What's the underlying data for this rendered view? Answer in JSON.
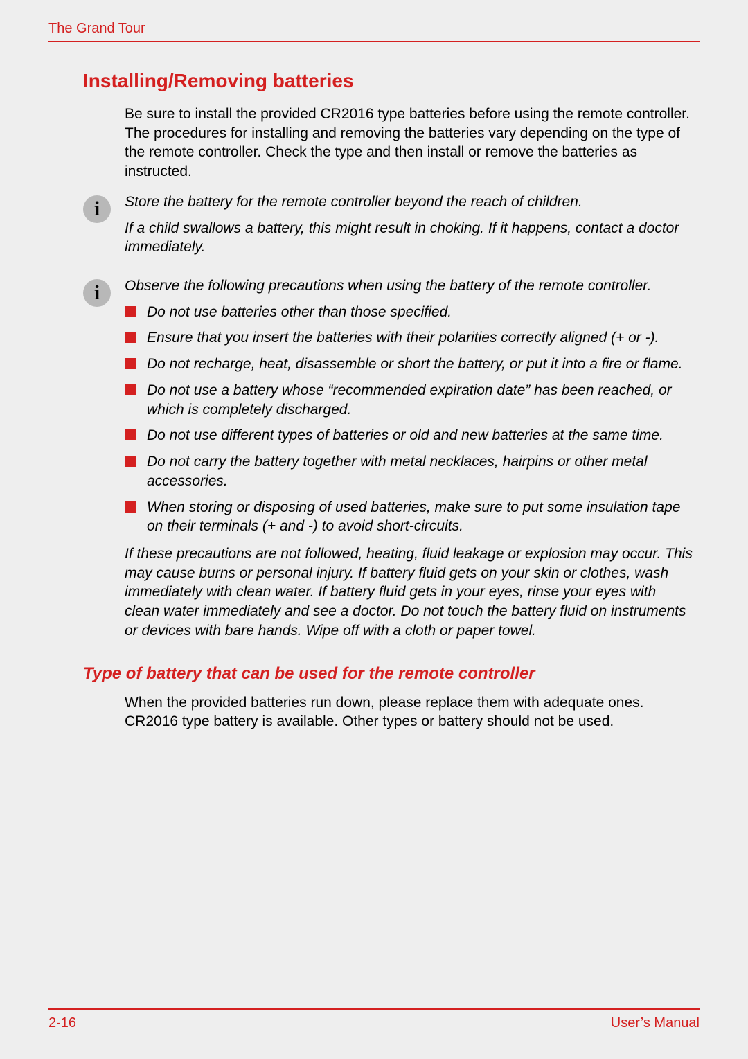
{
  "header": {
    "left": "The Grand Tour"
  },
  "section": {
    "heading": "Installing/Removing batteries",
    "intro": "Be sure to install the provided CR2016 type batteries before using the remote controller. The procedures for installing and removing the batteries vary depending on the type of the remote controller. Check the type and then install or remove the batteries as instructed."
  },
  "note1": {
    "line1": "Store the battery for the remote controller beyond the reach of children.",
    "line2": "If a child swallows a battery, this might result in choking. If it happens, contact a doctor immediately."
  },
  "note2": {
    "intro": "Observe the following precautions when using the battery of the remote controller.",
    "bullets": [
      "Do not use batteries other than those specified.",
      "Ensure that you insert the batteries with their polarities correctly aligned (+ or -).",
      "Do not recharge, heat, disassemble or short the battery, or put it into a fire or flame.",
      "Do not use a battery whose “recommended expiration date” has been reached, or which is completely discharged.",
      "Do not use different types of batteries or old and new batteries at the same time.",
      "Do not carry the battery together with metal necklaces, hairpins or other metal accessories.",
      "When storing or disposing of used batteries, make sure to put some insulation tape on their terminals (+ and -) to avoid short-circuits."
    ],
    "outro": "If these precautions are not followed, heating, fluid leakage or explosion may occur. This may cause burns or personal injury. If battery fluid gets on your skin or clothes, wash immediately with clean water. If battery fluid gets in your eyes, rinse your eyes with clean water immediately and see a doctor. Do not touch the battery fluid on instruments or devices with bare hands. Wipe off with a cloth or paper towel."
  },
  "subsection": {
    "heading": "Type of battery that can be used for the remote controller",
    "body": "When the provided batteries run down, please replace them with adequate ones. CR2016 type battery is available. Other types or battery should not be used."
  },
  "footer": {
    "left": "2-16",
    "right": "User’s Manual"
  },
  "colors": {
    "accent": "#d42020",
    "background": "#eeeeee",
    "text": "#000000",
    "icon_bg": "#b8b8b8"
  }
}
